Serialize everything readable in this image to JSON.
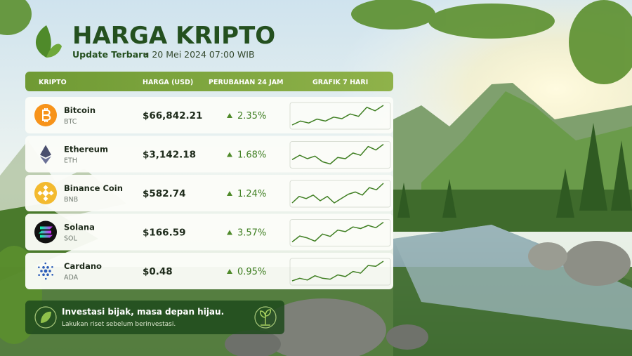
{
  "header": {
    "title": "HARGA KRIPTO",
    "subtitle": "Update Terbaru",
    "date": "• 20 Mei 2024 07:00 WIB"
  },
  "table": {
    "columns": [
      "KRIPTO",
      "HARGA (USD)",
      "PERUBAHAN 24 JAM",
      "GRAFIK 7 HARI"
    ],
    "rows": [
      {
        "name": "Bitcoin",
        "ticker": "BTC",
        "price": "$66,842.21",
        "change": "2.35%",
        "trend": [
          3,
          4,
          3.5,
          4.5,
          4,
          5,
          4.6,
          5.8,
          5.2,
          7.5,
          6.6,
          8
        ]
      },
      {
        "name": "Ethereum",
        "ticker": "ETH",
        "price": "$3,142.18",
        "change": "1.68%",
        "trend": [
          4,
          5,
          4.2,
          4.8,
          3.5,
          3,
          4.5,
          4.2,
          5.5,
          5,
          7,
          6.2,
          7.5
        ]
      },
      {
        "name": "Binance Coin",
        "ticker": "BNB",
        "price": "$582.74",
        "change": "1.24%",
        "trend": [
          3,
          4.5,
          4,
          4.8,
          3.5,
          4.5,
          3,
          4,
          5,
          5.5,
          4.8,
          6.5,
          6,
          7.5
        ]
      },
      {
        "name": "Solana",
        "ticker": "SOL",
        "price": "$166.59",
        "change": "3.57%",
        "trend": [
          3,
          4.5,
          4,
          3.2,
          5,
          4.4,
          6,
          5.6,
          6.8,
          6.4,
          7.2,
          6.6,
          8
        ]
      },
      {
        "name": "Cardano",
        "ticker": "ADA",
        "price": "$0.48",
        "change": "0.95%",
        "trend": [
          3,
          3.6,
          3.2,
          4.2,
          3.6,
          3.4,
          4.4,
          4,
          5.2,
          4.8,
          6.6,
          6.4,
          7.6
        ]
      }
    ]
  },
  "footer": {
    "headline": "Investasi bijak, masa depan hijau.",
    "note": "Lakukan riset sebelum berinvestasi."
  }
}
